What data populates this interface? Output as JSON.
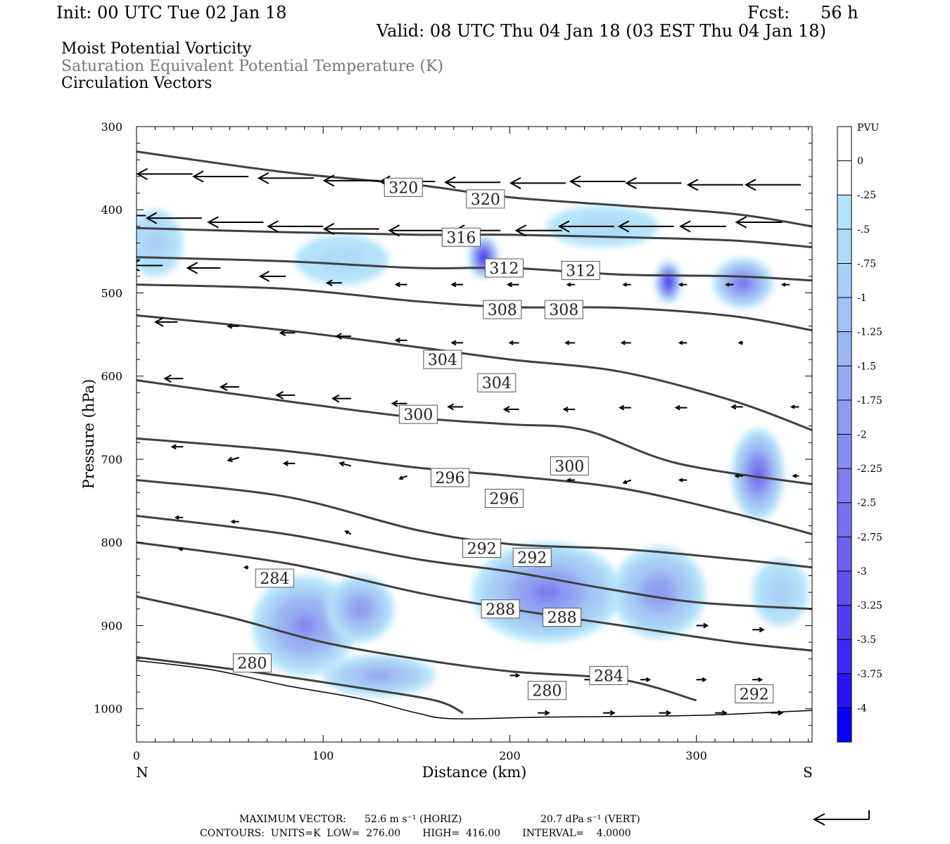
{
  "header": {
    "init": "Init: 00 UTC Tue 02 Jan 18",
    "fcst_label": "Fcst:",
    "fcst_value": "56 h",
    "valid": "Valid: 08 UTC Thu 04 Jan 18 (03 EST Thu 04 Jan 18)"
  },
  "legend_lines": {
    "line1": "Moist Potential Vorticity",
    "line2": "Saturation Equivalent Potential Temperature (K)",
    "line3": "Circulation Vectors"
  },
  "footer": {
    "max_vector_label": "MAXIMUM VECTOR:",
    "max_horiz": "52.6 m s⁻¹ (HORIZ)",
    "max_vert": "20.7 dPa s⁻¹ (VERT)",
    "contours": "CONTOURS:  UNITS=K  LOW=  276.00       HIGH=  416.00       INTERVAL=    4.0000"
  },
  "chart_data": {
    "type": "heatmap",
    "xlabel": "Distance (km)",
    "ylabel": "Pressure (hPa)",
    "x_ticks": [
      0,
      100,
      200,
      300
    ],
    "x_end_labels": {
      "left": "N",
      "right": "S"
    },
    "xlim": [
      0,
      362
    ],
    "y_ticks": [
      300,
      400,
      500,
      600,
      700,
      800,
      900,
      1000
    ],
    "ylim": [
      300,
      1040
    ],
    "colorbar_unit": "PVU",
    "colorbar_ticks": [
      "0",
      "-.25",
      "-.5",
      "-.75",
      "-1",
      "-1.25",
      "-1.5",
      "-1.75",
      "-2",
      "-2.25",
      "-2.5",
      "-2.75",
      "-3",
      "-3.25",
      "-3.5",
      "-3.75",
      "-4"
    ],
    "colorbar_colors": [
      "#ffffff",
      "#ffffff",
      "#b4e4fa",
      "#aedbf8",
      "#a8cff6",
      "#a2c3f4",
      "#9cb6f2",
      "#95a8f0",
      "#8e9af0",
      "#878cf0",
      "#7f7ef0",
      "#7770f0",
      "#6c60f2",
      "#5f4ff4",
      "#4f3cf6",
      "#3c28f8",
      "#2612fb",
      "#0a00ff"
    ],
    "pv_blobs": [
      {
        "x": 186,
        "p": 457,
        "rx": 8,
        "ry": 25,
        "value": -4.0
      },
      {
        "x": 285,
        "p": 487,
        "rx": 7,
        "ry": 25,
        "value": -4.0
      },
      {
        "x": 325,
        "p": 488,
        "rx": 16,
        "ry": 30,
        "value": -2.5
      },
      {
        "x": 333,
        "p": 718,
        "rx": 14,
        "ry": 55,
        "value": -2.75
      },
      {
        "x": 90,
        "p": 900,
        "rx": 28,
        "ry": 60,
        "value": -2.0
      },
      {
        "x": 120,
        "p": 880,
        "rx": 18,
        "ry": 40,
        "value": -1.75
      },
      {
        "x": 220,
        "p": 860,
        "rx": 40,
        "ry": 60,
        "value": -2.25
      },
      {
        "x": 280,
        "p": 860,
        "rx": 25,
        "ry": 55,
        "value": -1.75
      },
      {
        "x": 10,
        "p": 440,
        "rx": 15,
        "ry": 40,
        "value": -0.75
      },
      {
        "x": 110,
        "p": 460,
        "rx": 25,
        "ry": 30,
        "value": -0.5
      },
      {
        "x": 250,
        "p": 420,
        "rx": 30,
        "ry": 25,
        "value": -0.5
      },
      {
        "x": 130,
        "p": 960,
        "rx": 30,
        "ry": 25,
        "value": -1.5
      },
      {
        "x": 345,
        "p": 860,
        "rx": 15,
        "ry": 40,
        "value": -0.75
      }
    ],
    "theta_e_contours": [
      {
        "level": 320,
        "points": [
          [
            0,
            330
          ],
          [
            80,
            355
          ],
          [
            150,
            370
          ],
          [
            200,
            385
          ],
          [
            260,
            395
          ],
          [
            320,
            405
          ],
          [
            362,
            420
          ]
        ]
      },
      {
        "level": 316,
        "points": [
          [
            0,
            422
          ],
          [
            80,
            427
          ],
          [
            150,
            430
          ],
          [
            200,
            430
          ],
          [
            260,
            433
          ],
          [
            320,
            437
          ],
          [
            362,
            445
          ]
        ]
      },
      {
        "level": 312,
        "points": [
          [
            0,
            457
          ],
          [
            80,
            462
          ],
          [
            150,
            470
          ],
          [
            200,
            470
          ],
          [
            260,
            478
          ],
          [
            320,
            480
          ],
          [
            362,
            485
          ]
        ]
      },
      {
        "level": 308,
        "points": [
          [
            0,
            490
          ],
          [
            80,
            495
          ],
          [
            150,
            510
          ],
          [
            200,
            517
          ],
          [
            260,
            518
          ],
          [
            320,
            528
          ],
          [
            362,
            545
          ]
        ]
      },
      {
        "level": 304,
        "points": [
          [
            0,
            527
          ],
          [
            80,
            545
          ],
          [
            150,
            565
          ],
          [
            200,
            580
          ],
          [
            260,
            595
          ],
          [
            320,
            630
          ],
          [
            362,
            665
          ]
        ]
      },
      {
        "level": 300,
        "points": [
          [
            0,
            605
          ],
          [
            80,
            630
          ],
          [
            150,
            650
          ],
          [
            200,
            658
          ],
          [
            240,
            665
          ],
          [
            290,
            705
          ],
          [
            362,
            730
          ]
        ]
      },
      {
        "level": 296,
        "points": [
          [
            0,
            675
          ],
          [
            80,
            690
          ],
          [
            150,
            710
          ],
          [
            200,
            720
          ],
          [
            260,
            735
          ],
          [
            320,
            765
          ],
          [
            362,
            790
          ]
        ]
      },
      {
        "level": 292,
        "points": [
          [
            0,
            725
          ],
          [
            80,
            745
          ],
          [
            150,
            785
          ],
          [
            200,
            802
          ],
          [
            260,
            808
          ],
          [
            320,
            820
          ],
          [
            362,
            830
          ]
        ]
      },
      {
        "level": 292,
        "points": [
          [
            0,
            768
          ],
          [
            80,
            790
          ],
          [
            150,
            820
          ],
          [
            200,
            835
          ],
          [
            250,
            855
          ],
          [
            300,
            872
          ],
          [
            362,
            880
          ]
        ]
      },
      {
        "level": 288,
        "points": [
          [
            0,
            800
          ],
          [
            80,
            825
          ],
          [
            150,
            860
          ],
          [
            200,
            880
          ],
          [
            260,
            900
          ],
          [
            320,
            920
          ],
          [
            362,
            930
          ]
        ]
      },
      {
        "level": 284,
        "points": [
          [
            0,
            865
          ],
          [
            50,
            890
          ],
          [
            100,
            920
          ],
          [
            150,
            940
          ],
          [
            200,
            955
          ],
          [
            260,
            965
          ],
          [
            300,
            990
          ]
        ]
      },
      {
        "level": 280,
        "points": [
          [
            0,
            938
          ],
          [
            60,
            955
          ],
          [
            120,
            975
          ],
          [
            160,
            990
          ],
          [
            175,
            1005
          ]
        ]
      }
    ],
    "contour_labels": [
      {
        "text": "320",
        "x": 143,
        "p": 373
      },
      {
        "text": "320",
        "x": 187,
        "p": 387
      },
      {
        "text": "316",
        "x": 174,
        "p": 433
      },
      {
        "text": "312",
        "x": 197,
        "p": 470
      },
      {
        "text": "312",
        "x": 238,
        "p": 473
      },
      {
        "text": "308",
        "x": 196,
        "p": 520
      },
      {
        "text": "308",
        "x": 229,
        "p": 520
      },
      {
        "text": "304",
        "x": 164,
        "p": 580
      },
      {
        "text": "304",
        "x": 193,
        "p": 608
      },
      {
        "text": "300",
        "x": 151,
        "p": 646
      },
      {
        "text": "300",
        "x": 232,
        "p": 708
      },
      {
        "text": "296",
        "x": 168,
        "p": 722
      },
      {
        "text": "296",
        "x": 197,
        "p": 747
      },
      {
        "text": "292",
        "x": 185,
        "p": 807
      },
      {
        "text": "292",
        "x": 212,
        "p": 818
      },
      {
        "text": "284",
        "x": 74,
        "p": 843
      },
      {
        "text": "288",
        "x": 195,
        "p": 880
      },
      {
        "text": "288",
        "x": 228,
        "p": 890
      },
      {
        "text": "280",
        "x": 62,
        "p": 945
      },
      {
        "text": "284",
        "x": 253,
        "p": 960
      },
      {
        "text": "280",
        "x": 220,
        "p": 978
      },
      {
        "text": "292",
        "x": 331,
        "p": 982
      }
    ],
    "terrain_points": [
      [
        0,
        942
      ],
      [
        40,
        953
      ],
      [
        80,
        972
      ],
      [
        120,
        988
      ],
      [
        150,
        1005
      ],
      [
        170,
        1012
      ],
      [
        220,
        1010
      ],
      [
        300,
        1008
      ],
      [
        362,
        1002
      ]
    ],
    "vectors": [
      {
        "x": 0,
        "p": 352,
        "u": -30,
        "w": 0
      },
      {
        "x": 30,
        "p": 357,
        "u": -30,
        "w": 0
      },
      {
        "x": 60,
        "p": 360,
        "u": -30,
        "w": 0
      },
      {
        "x": 95,
        "p": 362,
        "u": -30,
        "w": 0
      },
      {
        "x": 130,
        "p": 365,
        "u": -30,
        "w": 0
      },
      {
        "x": 160,
        "p": 366,
        "u": -30,
        "w": 0
      },
      {
        "x": 195,
        "p": 367,
        "u": -30,
        "w": 0
      },
      {
        "x": 230,
        "p": 368,
        "u": -30,
        "w": 0
      },
      {
        "x": 262,
        "p": 366,
        "u": -30,
        "w": 0
      },
      {
        "x": 292,
        "p": 368,
        "u": -30,
        "w": 0
      },
      {
        "x": 325,
        "p": 370,
        "u": -30,
        "w": 0
      },
      {
        "x": 356,
        "p": 370,
        "u": -30,
        "w": 0
      },
      {
        "x": 5,
        "p": 407,
        "u": -30,
        "w": 0
      },
      {
        "x": 35,
        "p": 410,
        "u": -30,
        "w": 0
      },
      {
        "x": 68,
        "p": 415,
        "u": -30,
        "w": 0
      },
      {
        "x": 100,
        "p": 420,
        "u": -30,
        "w": 0
      },
      {
        "x": 130,
        "p": 423,
        "u": -30,
        "w": 0
      },
      {
        "x": 165,
        "p": 425,
        "u": -30,
        "w": 0
      },
      {
        "x": 195,
        "p": 425,
        "u": -25,
        "w": 0
      },
      {
        "x": 228,
        "p": 425,
        "u": -25,
        "w": 0
      },
      {
        "x": 256,
        "p": 420,
        "u": -30,
        "w": 0
      },
      {
        "x": 288,
        "p": 420,
        "u": -30,
        "w": 0
      },
      {
        "x": 316,
        "p": 420,
        "u": -25,
        "w": 0
      },
      {
        "x": 346,
        "p": 415,
        "u": -25,
        "w": 0
      },
      {
        "x": 14,
        "p": 467,
        "u": -18,
        "w": 0
      },
      {
        "x": 45,
        "p": 470,
        "u": -18,
        "w": 0
      },
      {
        "x": 80,
        "p": 480,
        "u": -14,
        "w": 0
      },
      {
        "x": 110,
        "p": 488,
        "u": -8,
        "w": 0
      },
      {
        "x": 145,
        "p": 490,
        "u": -6,
        "w": 0
      },
      {
        "x": 175,
        "p": 490,
        "u": -6,
        "w": 0
      },
      {
        "x": 205,
        "p": 490,
        "u": -6,
        "w": 0
      },
      {
        "x": 235,
        "p": 490,
        "u": -4,
        "w": 0
      },
      {
        "x": 265,
        "p": 490,
        "u": -4,
        "w": 0
      },
      {
        "x": 295,
        "p": 490,
        "u": -4,
        "w": 0
      },
      {
        "x": 320,
        "p": 490,
        "u": -4,
        "w": 0
      },
      {
        "x": 350,
        "p": 490,
        "u": -4,
        "w": 0
      },
      {
        "x": 22,
        "p": 535,
        "u": -12,
        "w": 0
      },
      {
        "x": 55,
        "p": 540,
        "u": -6,
        "w": 0
      },
      {
        "x": 85,
        "p": 548,
        "u": -8,
        "w": 0
      },
      {
        "x": 115,
        "p": 552,
        "u": -8,
        "w": 0
      },
      {
        "x": 145,
        "p": 557,
        "u": -6,
        "w": 0
      },
      {
        "x": 175,
        "p": 560,
        "u": -6,
        "w": 0
      },
      {
        "x": 205,
        "p": 560,
        "u": -5,
        "w": 0
      },
      {
        "x": 235,
        "p": 560,
        "u": -5,
        "w": 0
      },
      {
        "x": 265,
        "p": 560,
        "u": -5,
        "w": 0
      },
      {
        "x": 295,
        "p": 560,
        "u": -4,
        "w": 0
      },
      {
        "x": 325,
        "p": 560,
        "u": -2,
        "w": 0
      },
      {
        "x": 25,
        "p": 603,
        "u": -10,
        "w": 0
      },
      {
        "x": 55,
        "p": 613,
        "u": -10,
        "w": 0
      },
      {
        "x": 85,
        "p": 623,
        "u": -10,
        "w": 0
      },
      {
        "x": 115,
        "p": 627,
        "u": -10,
        "w": 0
      },
      {
        "x": 145,
        "p": 633,
        "u": -8,
        "w": 0
      },
      {
        "x": 175,
        "p": 637,
        "u": -8,
        "w": 0
      },
      {
        "x": 205,
        "p": 640,
        "u": -8,
        "w": 0
      },
      {
        "x": 235,
        "p": 640,
        "u": -6,
        "w": 0
      },
      {
        "x": 265,
        "p": 638,
        "u": -6,
        "w": 0
      },
      {
        "x": 295,
        "p": 638,
        "u": -6,
        "w": 0
      },
      {
        "x": 325,
        "p": 637,
        "u": -6,
        "w": 0
      },
      {
        "x": 355,
        "p": 637,
        "u": -4,
        "w": 0
      },
      {
        "x": 25,
        "p": 685,
        "u": -6,
        "w": 0
      },
      {
        "x": 55,
        "p": 698,
        "u": -6,
        "w": 1
      },
      {
        "x": 85,
        "p": 705,
        "u": -6,
        "w": 0
      },
      {
        "x": 115,
        "p": 708,
        "u": -6,
        "w": -1
      },
      {
        "x": 145,
        "p": 720,
        "u": -4,
        "w": 1
      },
      {
        "x": 235,
        "p": 725,
        "u": -4,
        "w": 0
      },
      {
        "x": 265,
        "p": 725,
        "u": -4,
        "w": 1
      },
      {
        "x": 295,
        "p": 725,
        "u": -4,
        "w": 0
      },
      {
        "x": 325,
        "p": 720,
        "u": -4,
        "w": 0
      },
      {
        "x": 355,
        "p": 720,
        "u": -3,
        "w": 0
      },
      {
        "x": 25,
        "p": 770,
        "u": -4,
        "w": 0
      },
      {
        "x": 55,
        "p": 775,
        "u": -4,
        "w": 0
      },
      {
        "x": 115,
        "p": 790,
        "u": -3,
        "w": -1
      },
      {
        "x": 25,
        "p": 808,
        "u": -2,
        "w": 0
      },
      {
        "x": 60,
        "p": 830,
        "u": -2,
        "w": 0
      },
      {
        "x": 300,
        "p": 900,
        "u": 6,
        "w": 0
      },
      {
        "x": 330,
        "p": 905,
        "u": 6,
        "w": 0
      },
      {
        "x": 200,
        "p": 960,
        "u": 5,
        "w": 0
      },
      {
        "x": 240,
        "p": 965,
        "u": 5,
        "w": 0
      },
      {
        "x": 270,
        "p": 965,
        "u": 5,
        "w": 0
      },
      {
        "x": 300,
        "p": 965,
        "u": 5,
        "w": 0
      },
      {
        "x": 330,
        "p": 965,
        "u": 5,
        "w": 0
      },
      {
        "x": 215,
        "p": 1005,
        "u": 6,
        "w": 0
      },
      {
        "x": 250,
        "p": 1005,
        "u": 6,
        "w": 0
      },
      {
        "x": 280,
        "p": 1005,
        "u": 6,
        "w": 0
      },
      {
        "x": 310,
        "p": 1005,
        "u": 6,
        "w": 0
      },
      {
        "x": 340,
        "p": 1005,
        "u": 6,
        "w": 0
      }
    ]
  }
}
